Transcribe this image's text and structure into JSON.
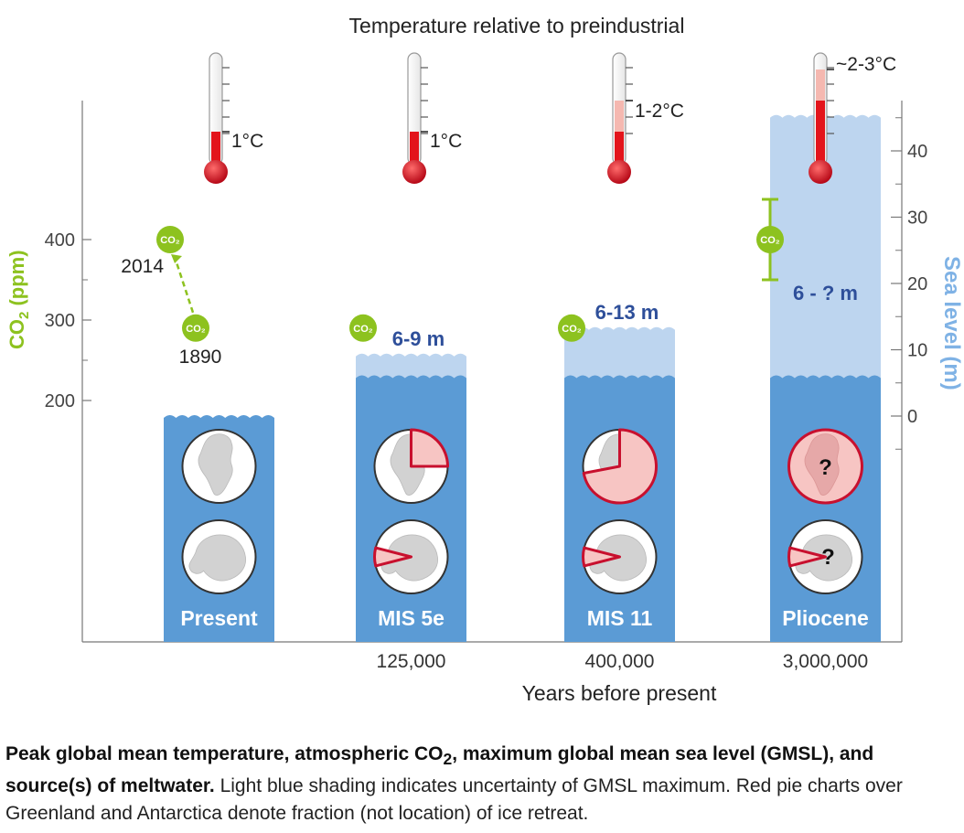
{
  "chart_data": {
    "type": "bar",
    "title": "Temperature relative to preindustrial",
    "xlabel": "Years before present",
    "ylabel_left": "CO₂ (ppm)",
    "ylabel_right": "Sea level (m)",
    "co2_ticks": [
      200,
      300,
      400
    ],
    "sea_level_ticks": [
      0,
      10,
      20,
      30,
      40
    ],
    "sea_level_range": [
      -5,
      47
    ],
    "co2_symbol": "CO₂",
    "present_co2": [
      {
        "year": "1890",
        "ppm": 290
      },
      {
        "year": "2014",
        "ppm": 400
      }
    ],
    "periods": [
      {
        "id": "present",
        "name": "Present",
        "years": "",
        "temp_label": "1°C",
        "temp_low": 1,
        "temp_high": 1,
        "sea_min": 0,
        "sea_max": 0,
        "sea_label": "",
        "co2_ppm": null,
        "co2_range": null,
        "greenland_fraction": 0,
        "antarctica_fraction": 0,
        "greenland_unknown": false,
        "antarctica_unknown": false
      },
      {
        "id": "mis5e",
        "name": "MIS 5e",
        "years": "125,000",
        "temp_label": "1°C",
        "temp_low": 1,
        "temp_high": 1,
        "sea_min": 6,
        "sea_max": 9,
        "sea_label": "6-9 m",
        "co2_ppm": 290,
        "co2_range": null,
        "greenland_fraction": 0.25,
        "antarctica_fraction": 0.08,
        "greenland_unknown": false,
        "antarctica_unknown": false
      },
      {
        "id": "mis11",
        "name": "MIS 11",
        "years": "400,000",
        "temp_label": "1-2°C",
        "temp_low": 1,
        "temp_high": 2,
        "sea_min": 6,
        "sea_max": 13,
        "sea_label": "6-13 m",
        "co2_ppm": 290,
        "co2_range": null,
        "greenland_fraction": 0.72,
        "antarctica_fraction": 0.08,
        "greenland_unknown": false,
        "antarctica_unknown": false
      },
      {
        "id": "pliocene",
        "name": "Pliocene",
        "years": "3,000,000",
        "temp_label": "~2-3°C",
        "temp_low": 2,
        "temp_high": 3,
        "sea_min": 6,
        "sea_max": 45,
        "sea_label": "6 - ? m",
        "co2_ppm": 400,
        "co2_range": [
          350,
          450
        ],
        "greenland_fraction": 1.0,
        "antarctica_fraction": 0.08,
        "greenland_unknown": true,
        "antarctica_unknown": true
      }
    ]
  },
  "caption": {
    "bold_1": "Peak global mean temperature, atmospheric CO",
    "bold_sub": "2",
    "bold_2": ", maximum global mean sea level (GMSL), and source(s) of meltwater.",
    "text": " Light blue shading indicates uncertainty of GMSL maximum. Red pie charts over Greenland and Antarctica denote fraction (not location) of ice retreat."
  },
  "colors": {
    "water": "#5b9bd5",
    "uncertainty": "#bdd5ef",
    "co2": "#8dc21f",
    "thermo_red": "#e3141b",
    "thermo_pale": "#f5b8b0",
    "pie_red": "#f7c5c3",
    "pie_edge": "#c8102e",
    "sea_axis": "#7fb2e5",
    "axis": "#777777"
  }
}
